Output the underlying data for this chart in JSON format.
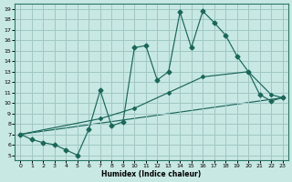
{
  "xlabel": "Humidex (Indice chaleur)",
  "xlim": [
    -0.5,
    23.5
  ],
  "ylim": [
    4.5,
    19.5
  ],
  "xticks": [
    0,
    1,
    2,
    3,
    4,
    5,
    6,
    7,
    8,
    9,
    10,
    11,
    12,
    13,
    14,
    15,
    16,
    17,
    18,
    19,
    20,
    21,
    22,
    23
  ],
  "yticks": [
    5,
    6,
    7,
    8,
    9,
    10,
    11,
    12,
    13,
    14,
    15,
    16,
    17,
    18,
    19
  ],
  "bg_color": "#c8e8e4",
  "grid_color": "#a0c8c4",
  "line_color": "#1a6658",
  "line1_x": [
    0,
    1,
    2,
    3,
    4,
    5,
    6,
    7,
    8,
    9,
    10,
    11,
    12,
    13,
    14,
    15,
    16,
    17,
    18,
    19,
    20,
    21,
    22,
    23
  ],
  "line1_y": [
    7.0,
    6.5,
    6.2,
    6.0,
    5.5,
    5.0,
    7.5,
    11.2,
    7.8,
    8.2,
    15.3,
    15.5,
    12.2,
    13.0,
    18.7,
    15.3,
    18.8,
    17.7,
    16.5,
    14.5,
    13.0,
    10.8,
    10.2,
    10.5
  ],
  "line2_x": [
    0,
    7,
    10,
    13,
    16,
    20,
    22,
    23
  ],
  "line2_y": [
    7.0,
    8.5,
    9.5,
    11.0,
    12.5,
    13.0,
    10.8,
    10.5
  ],
  "line3_x": [
    0,
    23
  ],
  "line3_y": [
    7.0,
    10.5
  ]
}
